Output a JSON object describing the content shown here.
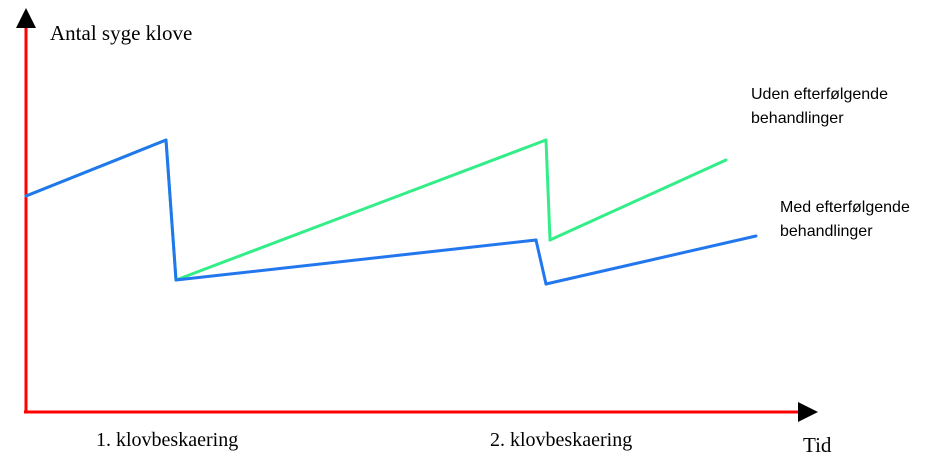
{
  "chart_data": {
    "type": "line",
    "ylabel": "Antal syge klove",
    "xlabel": "Tid",
    "x_annotations": [
      "1. klovbeskaering",
      "2. klovbeskaering"
    ],
    "colors": {
      "axis": "#ff0000",
      "uden": "#33ee88",
      "med": "#2277ee"
    },
    "series": [
      {
        "name": "Uden efterfølgende behandlinger",
        "label_lines": [
          "Uden efterfølgende",
          "behandlinger"
        ],
        "points": [
          [
            0,
            54
          ],
          [
            0.7,
            68
          ],
          [
            0.75,
            33
          ],
          [
            2.6,
            68
          ],
          [
            2.62,
            43
          ],
          [
            3.5,
            63
          ]
        ]
      },
      {
        "name": "Med efterfølgende behandlinger",
        "label_lines": [
          "Med efterfølgende",
          "behandlinger"
        ],
        "points": [
          [
            0,
            54
          ],
          [
            0.7,
            68
          ],
          [
            0.75,
            33
          ],
          [
            2.55,
            43
          ],
          [
            2.6,
            32
          ],
          [
            3.65,
            44
          ]
        ]
      }
    ]
  }
}
